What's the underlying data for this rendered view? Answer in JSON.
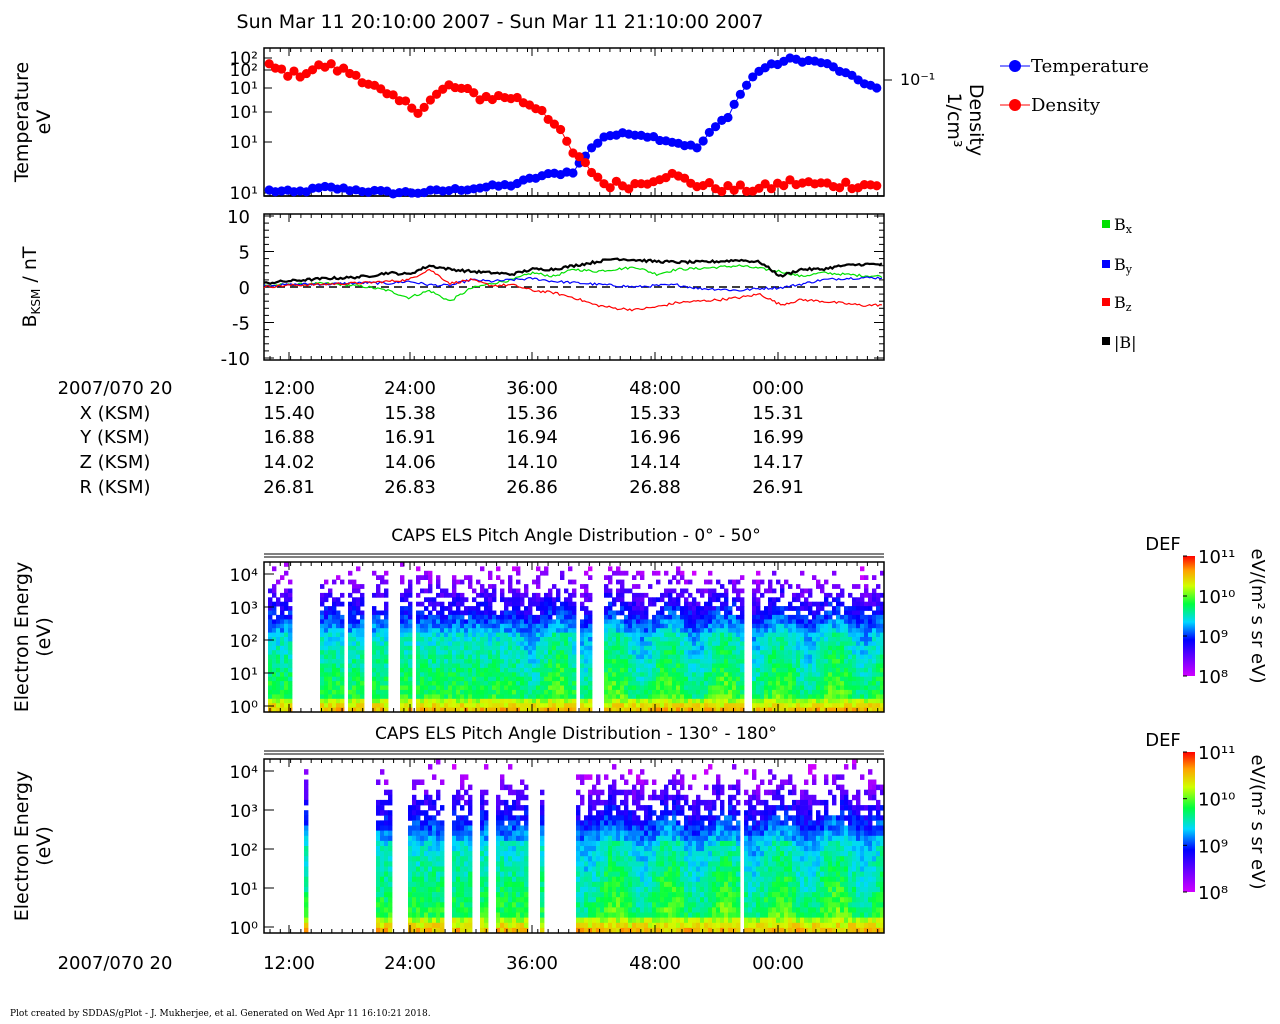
{
  "title": "Sun Mar 11 20:10:00 2007 - Sun Mar 11 21:10:00 2007",
  "footer": "Plot created by SDDAS/gPlot - J. Mukherjee, et al.  Generated on Wed Apr 11 16:10:21 2018.",
  "chart_data": [
    {
      "type": "line",
      "panel": "moments",
      "ylabel_left": [
        "Temperature",
        "eV"
      ],
      "ylabel_right": [
        "Density",
        "1/cm³"
      ],
      "left_tick_labels": [
        "10²",
        "10²",
        "10¹",
        "10¹",
        "10¹",
        "10¹"
      ],
      "right_tick_labels": [
        "10⁻¹"
      ],
      "x_minutes_past_hour_range": [
        10,
        70
      ],
      "series": [
        {
          "name": "Temperature",
          "color": "#0000ff",
          "x_minutes": [
            10,
            13,
            16,
            19,
            22,
            25,
            28,
            31,
            34,
            37,
            40,
            43,
            46,
            49,
            52,
            55,
            58,
            61,
            64,
            67,
            70
          ],
          "values": [
            11,
            10.6,
            11.5,
            11,
            10.6,
            10.6,
            11,
            11.5,
            12,
            14,
            15,
            27,
            28,
            25,
            22,
            38,
            80,
            95,
            90,
            70,
            55
          ]
        },
        {
          "name": "Density",
          "color": "#ff0000",
          "x_minutes": [
            10,
            13,
            16,
            19,
            22,
            25,
            28,
            31,
            34,
            37,
            40,
            43,
            46,
            49,
            52,
            55,
            58,
            61,
            64,
            67,
            70
          ],
          "values": [
            0.15,
            0.14,
            0.15,
            0.14,
            0.12,
            0.11,
            0.13,
            0.12,
            0.12,
            0.11,
            0.08,
            0.065,
            0.065,
            0.07,
            0.065,
            0.063,
            0.063,
            0.066,
            0.065,
            0.065,
            0.065
          ]
        }
      ]
    },
    {
      "type": "line",
      "panel": "magnetic-field",
      "ylabel": "B_KSM / nT",
      "ylim": [
        -10,
        10
      ],
      "yticks": [
        -10,
        -5,
        0,
        5,
        10
      ],
      "legend": [
        "Bx",
        "By",
        "Bz",
        "|B|"
      ],
      "series": [
        {
          "name": "Bx",
          "color": "#00e000",
          "x_minutes": [
            10,
            12,
            14,
            16,
            18,
            20,
            22,
            24,
            26,
            28,
            30,
            32,
            34,
            36,
            38,
            40,
            42,
            44,
            46,
            48,
            50,
            52,
            54,
            56,
            58,
            60,
            62,
            64,
            66,
            68,
            70
          ],
          "values": [
            0.2,
            0.3,
            0.4,
            0.5,
            0.3,
            0,
            -0.5,
            -1.5,
            -0.5,
            -2,
            -0.2,
            0.5,
            1,
            2,
            1.5,
            2.5,
            2.2,
            2.5,
            2.8,
            1.8,
            2.5,
            2.6,
            2.8,
            3,
            2.6,
            2.2,
            1.5,
            2,
            1.8,
            1.6,
            1.5
          ]
        },
        {
          "name": "By",
          "color": "#0000ff",
          "x_minutes": [
            10,
            12,
            14,
            16,
            18,
            20,
            22,
            24,
            26,
            28,
            30,
            32,
            34,
            36,
            38,
            40,
            42,
            44,
            46,
            48,
            50,
            52,
            54,
            56,
            58,
            60,
            62,
            64,
            66,
            68,
            70
          ],
          "values": [
            0.2,
            0.3,
            0.4,
            0.4,
            0.5,
            0.6,
            0.5,
            0.8,
            0.3,
            0.2,
            1,
            0.8,
            1,
            1.2,
            0.8,
            0.6,
            0.4,
            0.2,
            0,
            0.2,
            0.3,
            -0.2,
            -0.3,
            -0.5,
            -0.2,
            -0.1,
            0.4,
            1,
            1.2,
            1.3,
            1.3
          ]
        },
        {
          "name": "Bz",
          "color": "#ff0000",
          "x_minutes": [
            10,
            12,
            14,
            16,
            18,
            20,
            22,
            24,
            26,
            28,
            30,
            32,
            34,
            36,
            38,
            40,
            42,
            44,
            46,
            48,
            50,
            52,
            54,
            56,
            58,
            60,
            62,
            64,
            66,
            68,
            70
          ],
          "values": [
            0,
            0.2,
            0.3,
            0.4,
            0.5,
            0.6,
            0.8,
            1,
            2.5,
            0.5,
            1,
            0.2,
            0.3,
            -0.5,
            -0.8,
            -1.5,
            -2.5,
            -3,
            -3.2,
            -2.8,
            -2.2,
            -2,
            -1.8,
            -1.5,
            -1,
            -2.5,
            -1.8,
            -2,
            -2.3,
            -2.6,
            -2.5
          ]
        },
        {
          "name": "|B|",
          "color": "#000000",
          "x_minutes": [
            10,
            12,
            14,
            16,
            18,
            20,
            22,
            24,
            26,
            28,
            30,
            32,
            34,
            36,
            38,
            40,
            42,
            44,
            46,
            48,
            50,
            52,
            54,
            56,
            58,
            60,
            62,
            64,
            66,
            68,
            70
          ],
          "values": [
            0.5,
            0.8,
            1,
            1.2,
            1.3,
            1.5,
            2,
            1.8,
            3,
            2.5,
            2.2,
            2,
            1.8,
            2.5,
            2.5,
            3,
            3.5,
            4,
            3.8,
            3.6,
            3.5,
            3.5,
            3.6,
            3.8,
            3.5,
            1.5,
            2.5,
            2.5,
            3,
            3.2,
            3.2
          ]
        }
      ]
    },
    {
      "type": "heatmap",
      "panel": "spectrogram-1",
      "title": "CAPS ELS Pitch Angle Distribution - 0° - 50°",
      "ylabel": [
        "Electron Energy",
        "(eV)"
      ],
      "yticks": [
        "10⁰",
        "10¹",
        "10²",
        "10³",
        "10⁴"
      ],
      "colorbar": {
        "label": "DEF",
        "units": "eV/(m² s sr eV)",
        "ticks": [
          "10¹¹",
          "10¹⁰",
          "10⁹",
          "10⁸"
        ]
      }
    },
    {
      "type": "heatmap",
      "panel": "spectrogram-2",
      "title": "CAPS ELS Pitch Angle Distribution - 130° - 180°",
      "ylabel": [
        "Electron Energy",
        "(eV)"
      ],
      "yticks": [
        "10⁰",
        "10¹",
        "10²",
        "10³",
        "10⁴"
      ],
      "colorbar": {
        "label": "DEF",
        "units": "eV/(m² s sr eV)",
        "ticks": [
          "10¹¹",
          "10¹⁰",
          "10⁹",
          "10⁸"
        ]
      }
    }
  ],
  "time_axis": {
    "labels": [
      "12:00",
      "24:00",
      "36:00",
      "48:00",
      "00:00"
    ]
  },
  "ephemeris": {
    "row_label": "2007/070 20",
    "rows": [
      {
        "label": "X (KSM)",
        "values": [
          "15.40",
          "15.38",
          "15.36",
          "15.33",
          "15.31"
        ]
      },
      {
        "label": "Y (KSM)",
        "values": [
          "16.88",
          "16.91",
          "16.94",
          "16.96",
          "16.99"
        ]
      },
      {
        "label": "Z (KSM)",
        "values": [
          "14.02",
          "14.06",
          "14.10",
          "14.14",
          "14.17"
        ]
      },
      {
        "label": "R (KSM)",
        "values": [
          "26.81",
          "26.83",
          "26.86",
          "26.88",
          "26.91"
        ]
      }
    ]
  },
  "bottom_time_label": "2007/070 20"
}
